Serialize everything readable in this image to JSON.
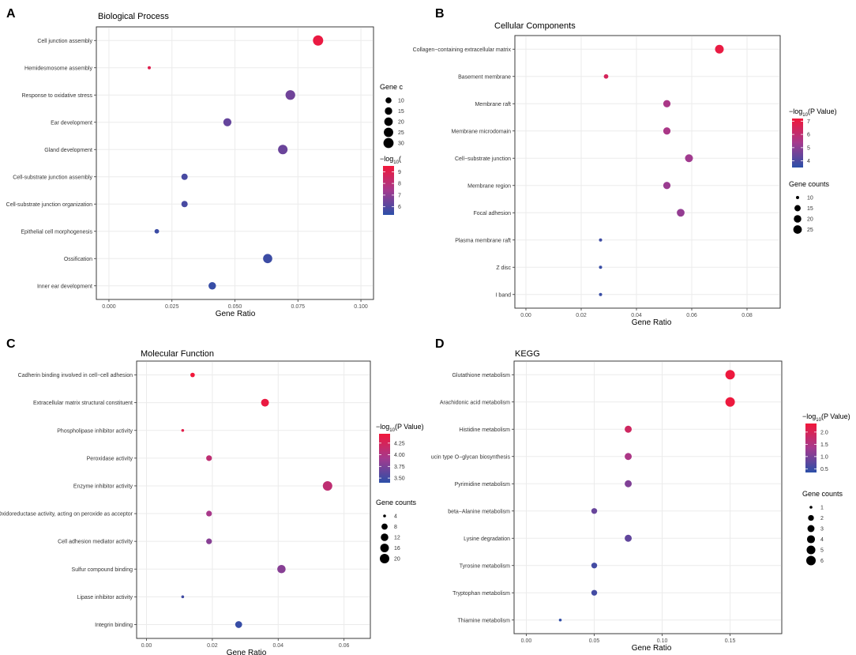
{
  "chart_data": [
    {
      "type": "scatter",
      "panel_label": "A",
      "title": "Biological Process",
      "xlabel": "Gene Ratio",
      "ylabel": "",
      "xlim": [
        -0.005,
        0.105
      ],
      "xticks": [
        0.0,
        0.025,
        0.05,
        0.075,
        0.1
      ],
      "xtick_labels": [
        "0.000",
        "0.025",
        "0.050",
        "0.075",
        "0.100"
      ],
      "categories": [
        "Cell junction assembly",
        "Hemidesmosome assembly",
        "Response to oxidative stress",
        "Ear development",
        "Gland development",
        "Cell-substrate junction assembly",
        "Cell-substrate junction organization",
        "Epithelial cell morphogenesis",
        "Ossification",
        "Inner ear development"
      ],
      "gene_ratio": [
        0.083,
        0.016,
        0.072,
        0.047,
        0.069,
        0.03,
        0.03,
        0.019,
        0.063,
        0.041
      ],
      "gene_counts": [
        31,
        6,
        27,
        18,
        26,
        11,
        11,
        7,
        24,
        15
      ],
      "neg_log10_p": [
        9.3,
        9.0,
        6.5,
        6.3,
        6.4,
        5.8,
        5.8,
        5.6,
        5.6,
        5.5
      ],
      "color_legend": {
        "title_prefix": "−log",
        "title_sub": "10",
        "title_suffix": "(",
        "min": 5.3,
        "max": 9.5,
        "ticks": [
          6,
          7,
          8,
          9
        ],
        "tick_labels": [
          "6",
          "7",
          "8",
          "9"
        ]
      },
      "size_legend": {
        "title": "Gene c",
        "values": [
          10,
          15,
          20,
          25,
          30
        ],
        "labels": [
          "10",
          "15",
          "20",
          "25",
          "30"
        ],
        "min": 6,
        "max": 31
      }
    },
    {
      "type": "scatter",
      "panel_label": "B",
      "title": "Cellular Components",
      "xlabel": "Gene Ratio",
      "ylabel": "",
      "xlim": [
        -0.004,
        0.092
      ],
      "xticks": [
        0.0,
        0.02,
        0.04,
        0.06,
        0.08
      ],
      "xtick_labels": [
        "0.00",
        "0.02",
        "0.04",
        "0.06",
        "0.08"
      ],
      "categories": [
        "Collagen−containing extracellular matrix",
        "Basement membrane",
        "Membrane raft",
        "Membrane microdomain",
        "Cell−substrate junction",
        "Membrane region",
        "Focal adhesion",
        "Plasma membrane raft",
        "Z disc",
        "I band"
      ],
      "gene_ratio": [
        0.07,
        0.029,
        0.051,
        0.051,
        0.059,
        0.051,
        0.056,
        0.027,
        0.027,
        0.027
      ],
      "gene_counts": [
        26,
        11,
        19,
        19,
        22,
        19,
        21,
        10,
        10,
        10
      ],
      "neg_log10_p": [
        7.0,
        6.5,
        5.5,
        5.5,
        5.3,
        5.2,
        5.1,
        3.8,
        3.7,
        3.7
      ],
      "color_legend": {
        "title_prefix": "−log",
        "title_sub": "10",
        "title_suffix": "(P Value)",
        "min": 3.5,
        "max": 7.2,
        "ticks": [
          4,
          5,
          6,
          7
        ],
        "tick_labels": [
          "4",
          "5",
          "6",
          "7"
        ]
      },
      "size_legend": {
        "title": "Gene counts",
        "values": [
          10,
          15,
          20,
          25
        ],
        "labels": [
          "10",
          "15",
          "20",
          "25"
        ],
        "min": 10,
        "max": 26
      }
    },
    {
      "type": "scatter",
      "panel_label": "C",
      "title": "Molecular Function",
      "xlabel": "Gene Ratio",
      "ylabel": "",
      "xlim": [
        -0.003,
        0.068
      ],
      "xticks": [
        0.0,
        0.02,
        0.04,
        0.06
      ],
      "xtick_labels": [
        "0.00",
        "0.02",
        "0.04",
        "0.06"
      ],
      "categories": [
        "Cadherin binding involved in cell−cell adhesion",
        "Extracellular matrix structural constituent",
        "Phospholipase inhibitor activity",
        "Peroxidase activity",
        "Enzyme inhibitor activity",
        "Oxidoreductase activity, acting on peroxide as acceptor",
        "Cell adhesion mediator activity",
        "Sulfur compound binding",
        "Lipase inhibitor activity",
        "Integrin binding"
      ],
      "gene_ratio": [
        0.014,
        0.036,
        0.011,
        0.019,
        0.055,
        0.019,
        0.019,
        0.041,
        0.011,
        0.028
      ],
      "gene_counts": [
        5,
        13,
        4,
        7,
        20,
        7,
        7,
        15,
        4,
        10
      ],
      "neg_log10_p": [
        4.45,
        4.4,
        4.35,
        4.1,
        4.1,
        3.95,
        3.8,
        3.8,
        3.5,
        3.45
      ],
      "color_legend": {
        "title_prefix": "−log",
        "title_sub": "10",
        "title_suffix": "(P Value)",
        "min": 3.4,
        "max": 4.45,
        "ticks": [
          3.5,
          3.75,
          4.0,
          4.25
        ],
        "tick_labels": [
          "3.50",
          "3.75",
          "4.00",
          "4.25"
        ]
      },
      "size_legend": {
        "title": "Gene counts",
        "values": [
          4,
          8,
          12,
          16,
          20
        ],
        "labels": [
          "4",
          "8",
          "12",
          "16",
          "20"
        ],
        "min": 4,
        "max": 20
      }
    },
    {
      "type": "scatter",
      "panel_label": "D",
      "title": "KEGG",
      "xlabel": "Gene Ratio",
      "ylabel": "",
      "xlim": [
        -0.009,
        0.188
      ],
      "xticks": [
        0.0,
        0.05,
        0.1,
        0.15
      ],
      "xtick_labels": [
        "0.00",
        "0.05",
        "0.10",
        "0.15"
      ],
      "categories": [
        "Glutathione metabolism",
        "Arachidonic acid metabolism",
        "Histidine metabolism",
        "ucin type O−glycan biosynthesis",
        "Pyrimidine metabolism",
        "beta−Alanine metabolism",
        "Lysine degradation",
        "Tyrosine metabolism",
        "Tryptophan metabolism",
        "Thiamine metabolism"
      ],
      "gene_ratio": [
        0.15,
        0.15,
        0.075,
        0.075,
        0.075,
        0.05,
        0.075,
        0.05,
        0.05,
        0.025
      ],
      "gene_counts": [
        6,
        6,
        3,
        3,
        3,
        2,
        3,
        2,
        2,
        1
      ],
      "neg_log10_p": [
        2.3,
        2.3,
        1.9,
        1.45,
        1.05,
        0.85,
        0.8,
        0.55,
        0.55,
        0.4
      ],
      "color_legend": {
        "title_prefix": "−log",
        "title_sub": "10",
        "title_suffix": "(P Value)",
        "min": 0.35,
        "max": 2.35,
        "ticks": [
          0.5,
          1.0,
          1.5,
          2.0
        ],
        "tick_labels": [
          "0.5",
          "1.0",
          "1.5",
          "2.0"
        ]
      },
      "size_legend": {
        "title": "Gene counts",
        "values": [
          1,
          2,
          3,
          4,
          5,
          6
        ],
        "labels": [
          "1",
          "2",
          "3",
          "4",
          "5",
          "6"
        ],
        "min": 1,
        "max": 6
      }
    }
  ],
  "colors": {
    "low": "#2b4fa8",
    "mid": "#a43a8e",
    "high": "#f1173a",
    "grid": "#ebebeb",
    "frame": "#333333"
  }
}
